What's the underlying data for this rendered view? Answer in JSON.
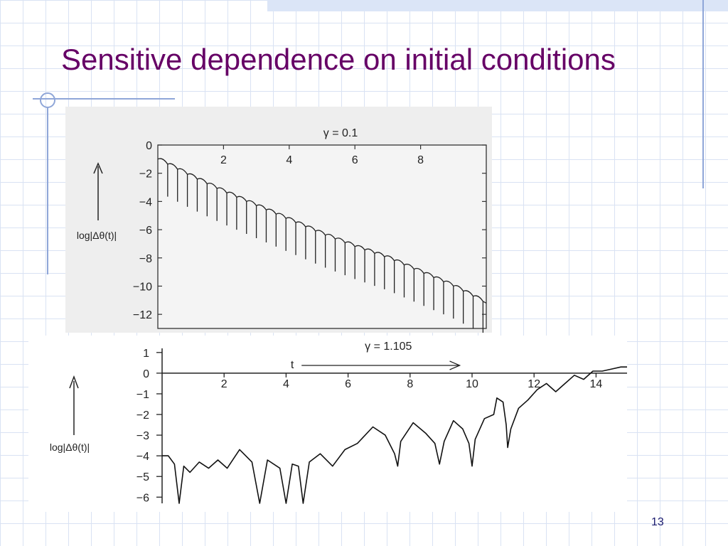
{
  "slide": {
    "title": "Sensitive dependence on initial conditions",
    "page_number": "13"
  },
  "colors": {
    "title": "#660066",
    "grid": "#d9e2f3",
    "accent_lines": "#8fa6d8"
  },
  "chart_data": [
    {
      "type": "line",
      "title": "γ = 0.1",
      "ylabel": "log|Δθ(t)|",
      "x_ticks": [
        2,
        4,
        6,
        8
      ],
      "y_ticks": [
        0,
        -2,
        -4,
        -6,
        -8,
        -10,
        -12
      ],
      "xlim": [
        0,
        10
      ],
      "ylim": [
        -13,
        0
      ],
      "series": [
        {
          "envelope_x": [
            0.0,
            1.0,
            2.0,
            3.0,
            4.0,
            5.0,
            6.0,
            7.0,
            8.0,
            9.0,
            10.0
          ],
          "envelope_y": [
            -1.0,
            -2.2,
            -3.3,
            -4.3,
            -5.3,
            -6.3,
            -7.2,
            -8.0,
            -9.0,
            -10.0,
            -11.2
          ],
          "dip_x": [
            0.3,
            0.6,
            0.9,
            1.2,
            1.5,
            1.8,
            2.1,
            2.4,
            2.7,
            3.0,
            3.3,
            3.6,
            3.9,
            4.2,
            4.5,
            4.8,
            5.1,
            5.4,
            5.7,
            6.0,
            6.3,
            6.6,
            6.9,
            7.2,
            7.5,
            7.8,
            8.1,
            8.4,
            8.7,
            9.0,
            9.3,
            9.6,
            9.9
          ],
          "dip_depth": 2.3
        }
      ]
    },
    {
      "type": "line",
      "title": "γ = 1.105",
      "axis_arrow_label": "t",
      "ylabel": "log|Δθ(t)|",
      "x_ticks": [
        2,
        4,
        6,
        8,
        10,
        12,
        14
      ],
      "y_ticks": [
        1,
        0,
        -1,
        -2,
        -3,
        -4,
        -5,
        -6
      ],
      "xlim": [
        0,
        15
      ],
      "ylim": [
        -6.3,
        1.2
      ],
      "series": [
        {
          "points": [
            [
              0,
              -4.0
            ],
            [
              0.2,
              -4.0
            ],
            [
              0.4,
              -4.4
            ],
            [
              0.55,
              -6.3
            ],
            [
              0.7,
              -4.5
            ],
            [
              0.9,
              -4.8
            ],
            [
              1.2,
              -4.3
            ],
            [
              1.5,
              -4.6
            ],
            [
              1.8,
              -4.2
            ],
            [
              2.1,
              -4.6
            ],
            [
              2.5,
              -3.7
            ],
            [
              2.9,
              -4.3
            ],
            [
              3.15,
              -6.3
            ],
            [
              3.4,
              -4.2
            ],
            [
              3.8,
              -4.6
            ],
            [
              4.0,
              -6.3
            ],
            [
              4.2,
              -4.4
            ],
            [
              4.4,
              -4.5
            ],
            [
              4.55,
              -6.3
            ],
            [
              4.75,
              -4.3
            ],
            [
              5.1,
              -3.9
            ],
            [
              5.5,
              -4.5
            ],
            [
              5.9,
              -3.7
            ],
            [
              6.3,
              -3.4
            ],
            [
              6.8,
              -2.6
            ],
            [
              7.2,
              -3.0
            ],
            [
              7.5,
              -3.9
            ],
            [
              7.6,
              -4.5
            ],
            [
              7.7,
              -3.3
            ],
            [
              8.1,
              -2.4
            ],
            [
              8.5,
              -2.9
            ],
            [
              8.8,
              -3.4
            ],
            [
              8.95,
              -4.4
            ],
            [
              9.1,
              -3.3
            ],
            [
              9.4,
              -2.3
            ],
            [
              9.7,
              -2.7
            ],
            [
              9.9,
              -3.4
            ],
            [
              10.0,
              -4.5
            ],
            [
              10.1,
              -3.2
            ],
            [
              10.4,
              -2.2
            ],
            [
              10.7,
              -2.0
            ],
            [
              10.8,
              -1.2
            ],
            [
              11.0,
              -1.4
            ],
            [
              11.1,
              -2.5
            ],
            [
              11.15,
              -3.6
            ],
            [
              11.25,
              -2.7
            ],
            [
              11.5,
              -1.7
            ],
            [
              11.8,
              -1.3
            ],
            [
              12.1,
              -0.8
            ],
            [
              12.4,
              -0.5
            ],
            [
              12.7,
              -0.9
            ],
            [
              13.0,
              -0.5
            ],
            [
              13.3,
              -0.1
            ],
            [
              13.6,
              -0.3
            ],
            [
              13.9,
              0.1
            ],
            [
              14.2,
              0.1
            ],
            [
              14.5,
              0.2
            ],
            [
              14.8,
              0.3
            ],
            [
              15.0,
              0.3
            ]
          ]
        }
      ]
    }
  ]
}
